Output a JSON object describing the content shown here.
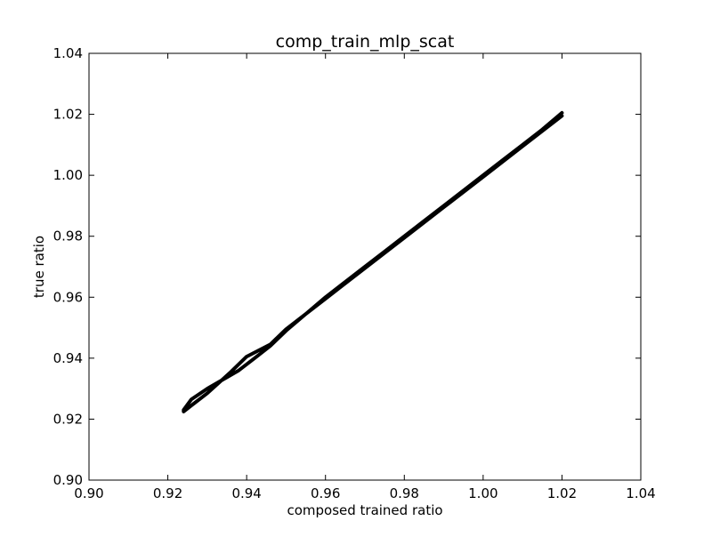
{
  "chart_data": {
    "type": "line",
    "title": "comp_train_mlp_scat",
    "xlabel": "composed trained ratio",
    "ylabel": "true ratio",
    "xlim": [
      0.9,
      1.04
    ],
    "ylim": [
      0.9,
      1.04
    ],
    "xticks": [
      "0.90",
      "0.92",
      "0.94",
      "0.96",
      "0.98",
      "1.00",
      "1.02",
      "1.04"
    ],
    "yticks": [
      "0.90",
      "0.92",
      "0.94",
      "0.96",
      "0.98",
      "1.00",
      "1.02",
      "1.04"
    ],
    "grid": false,
    "legend": "none",
    "line_color": "#000000",
    "series": [
      {
        "x": [
          1.02,
          1.01,
          1.0,
          0.99,
          0.98,
          0.97,
          0.96,
          0.95,
          0.946,
          0.94,
          0.936,
          0.93,
          0.926,
          0.924,
          0.924,
          0.926,
          0.93,
          0.934,
          0.938,
          0.942,
          0.946,
          0.95,
          0.955,
          0.96,
          0.965,
          0.97,
          0.975,
          0.98,
          0.985,
          0.99,
          0.995,
          1.0,
          1.005,
          1.01,
          1.015,
          1.02
        ],
        "y": [
          1.0195,
          1.0095,
          0.9995,
          0.9895,
          0.9795,
          0.9695,
          0.9595,
          0.9495,
          0.9445,
          0.9405,
          0.9355,
          0.9285,
          0.9245,
          0.9225,
          0.923,
          0.9265,
          0.93,
          0.933,
          0.936,
          0.94,
          0.944,
          0.949,
          0.9545,
          0.96,
          0.965,
          0.97,
          0.975,
          0.98,
          0.985,
          0.99,
          0.995,
          1.0,
          1.005,
          1.01,
          1.015,
          1.0205
        ]
      }
    ]
  }
}
